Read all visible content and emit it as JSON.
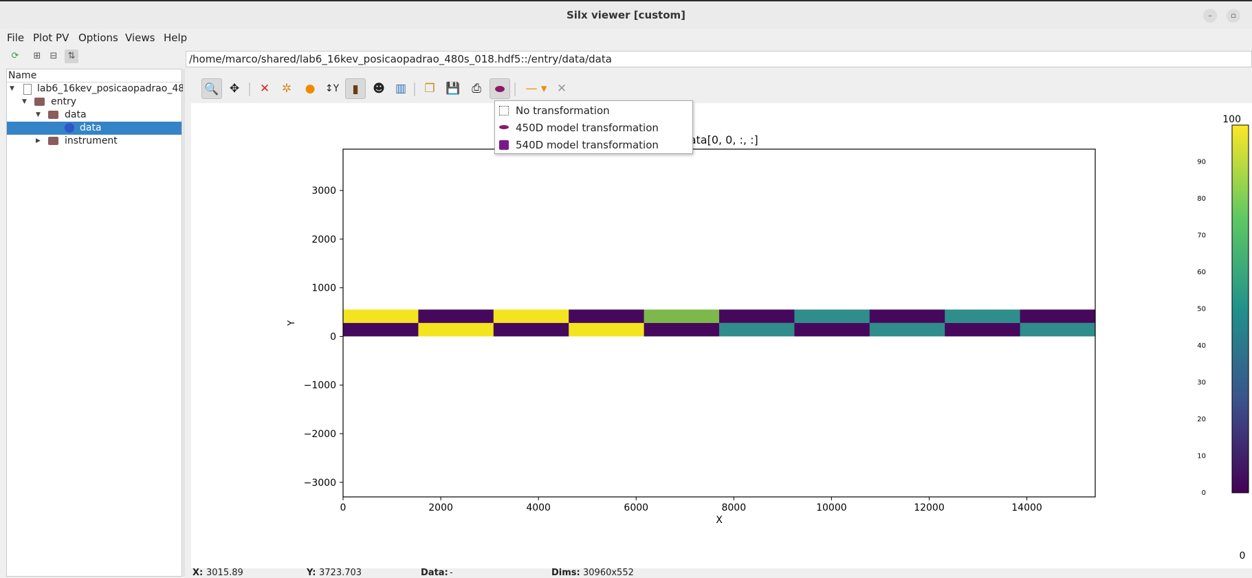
{
  "window": {
    "title": "Silx viewer [custom]",
    "minimize_label": "–",
    "maximize_label": "▫",
    "close_label": "✕"
  },
  "menubar": {
    "items": [
      {
        "label": "File"
      },
      {
        "label": "Plot PV"
      },
      {
        "label": "Options"
      },
      {
        "label": "Views"
      },
      {
        "label": "Help"
      }
    ]
  },
  "tree": {
    "header": "Name",
    "items": [
      {
        "label": "lab6_16kev_posicaopadrao_48"
      },
      {
        "label": "entry"
      },
      {
        "label": "data"
      },
      {
        "label": "data"
      },
      {
        "label": "instrument"
      }
    ]
  },
  "path_field": {
    "value": "/home/marco/shared/lab6_16kev_posicaopadrao_480s_018.hdf5::/entry/data/data"
  },
  "toolbar": {
    "icons": [
      "zoom-icon",
      "pan-icon",
      "reset-zoom-icon",
      "colormap-icon",
      "marker-icon",
      "y-axis-icon",
      "aspect-icon",
      "mask-icon",
      "histogram-icon",
      "copy-icon",
      "save-icon",
      "print-icon",
      "transformation-icon",
      "line-style-icon",
      "crosshair-icon"
    ]
  },
  "transformation_menu": {
    "items": [
      {
        "label": "No transformation"
      },
      {
        "label": "450D model transformation"
      },
      {
        "label": "540D model transformation"
      }
    ]
  },
  "colors": {
    "viridis_dark": "#440154",
    "viridis_yellow": "#fde725",
    "viridis_teal": "#2e8e8d",
    "selection": "#3584c7"
  },
  "chart_data": {
    "type": "heatmap",
    "title": "ata/data[0, 0, :, :]",
    "xlabel": "X",
    "ylabel": "Y",
    "xlim": [
      0,
      15400
    ],
    "ylim": [
      -3300,
      3850
    ],
    "x_ticks": [
      "0",
      "2000",
      "4000",
      "6000",
      "8000",
      "10000",
      "12000",
      "14000"
    ],
    "y_ticks": [
      "3000",
      "2000",
      "1000",
      "0",
      "−1000",
      "−2000",
      "−3000"
    ],
    "image_extent": {
      "x": [
        0,
        15400
      ],
      "y": [
        0,
        552
      ]
    },
    "colorbar": {
      "min": 0,
      "max": 100,
      "min_label": "0",
      "max_label": "100",
      "ticks": [
        "90",
        "80",
        "70",
        "60",
        "50",
        "40",
        "30",
        "20",
        "10",
        "0"
      ]
    },
    "tiles_top": [
      "yellow",
      "dark",
      "yellow",
      "dark",
      "green",
      "dark",
      "teal",
      "dark",
      "teal",
      "dark"
    ],
    "tiles_bottom": [
      "dark",
      "yellow",
      "dark",
      "yellow",
      "dark",
      "teal",
      "dark",
      "teal",
      "dark",
      "teal"
    ]
  },
  "status": {
    "x_label": "X:",
    "x_value": "3015.89",
    "y_label": "Y:",
    "y_value": "3723.703",
    "data_label": "Data:",
    "data_value": "-",
    "dims_label": "Dims:",
    "dims_value": "30960x552"
  }
}
